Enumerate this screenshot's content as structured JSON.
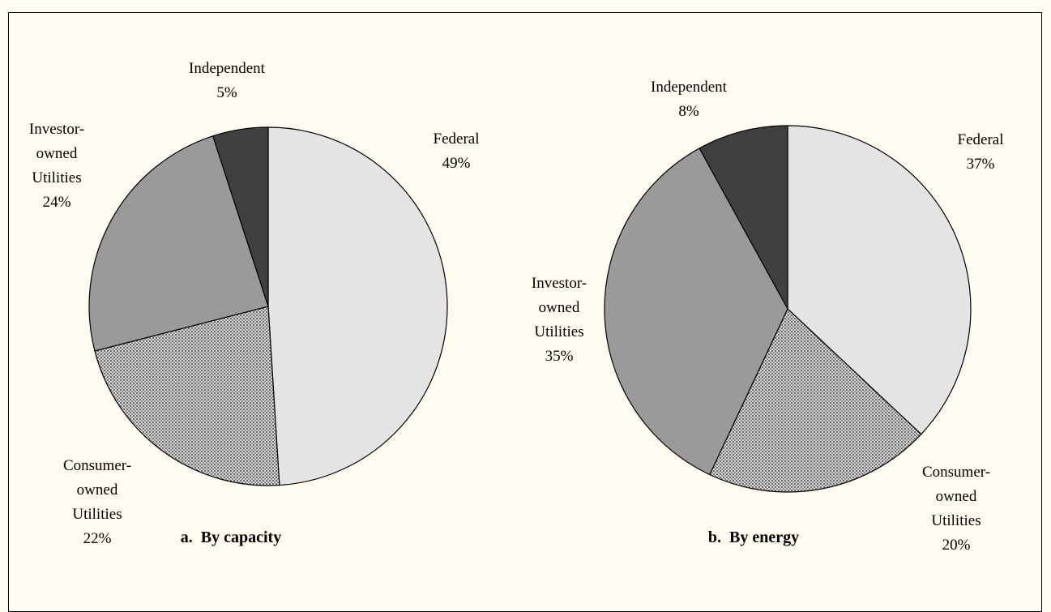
{
  "chart_data": [
    {
      "type": "pie",
      "title": "a.  By capacity",
      "categories": [
        "Federal",
        "Consumer-\nowned\nUtilities",
        "Investor-\nowned\nUtilities",
        "Independent"
      ],
      "values": [
        49,
        22,
        24,
        5
      ],
      "value_labels": [
        "49%",
        "22%",
        "24%",
        "5%"
      ],
      "colors": [
        "#e4e4e4",
        "#b4b4b4",
        "#9a9a9a",
        "#404040"
      ],
      "hatched": [
        false,
        true,
        false,
        false
      ]
    },
    {
      "type": "pie",
      "title": "b.  By energy",
      "categories": [
        "Federal",
        "Consumer-\nowned\nUtilities",
        "Investor-\nowned\nUtilities",
        "Independent"
      ],
      "values": [
        37,
        20,
        35,
        8
      ],
      "value_labels": [
        "37%",
        "20%",
        "35%",
        "8%"
      ],
      "colors": [
        "#e4e4e4",
        "#b4b4b4",
        "#9a9a9a",
        "#404040"
      ],
      "hatched": [
        false,
        true,
        false,
        false
      ]
    }
  ]
}
